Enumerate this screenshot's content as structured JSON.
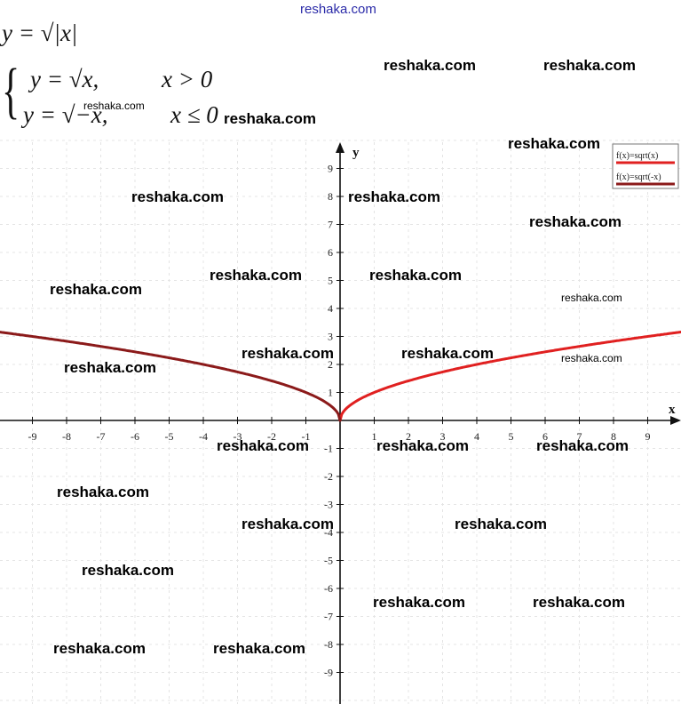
{
  "header": {
    "site": "reshaka.com"
  },
  "formula": {
    "main": "y = √|x|",
    "case1": "y = √x,",
    "case1_cond": "x > 0",
    "case2": "y = √−x,",
    "case2_cond": "x ≤ 0"
  },
  "watermark": "reshaka.com",
  "chart_data": {
    "type": "line",
    "xlabel": "x",
    "ylabel": "y",
    "xlim": [
      -10,
      10
    ],
    "ylim": [
      -10,
      10
    ],
    "x_ticks": [
      -9,
      -8,
      -7,
      -6,
      -5,
      -4,
      -3,
      -2,
      -1,
      1,
      2,
      3,
      4,
      5,
      6,
      7,
      8,
      9
    ],
    "y_ticks": [
      -9,
      -8,
      -7,
      -6,
      -5,
      -4,
      -3,
      -2,
      -1,
      1,
      2,
      3,
      4,
      5,
      6,
      7,
      8,
      9
    ],
    "grid": true,
    "legend_position": "top-right",
    "series": [
      {
        "name": "f(x)=sqrt(x)",
        "color": "#e02020",
        "x": [
          0,
          0.25,
          0.5,
          1,
          2,
          3,
          4,
          5,
          6,
          7,
          8,
          9,
          10
        ],
        "y": [
          0,
          0.5,
          0.71,
          1,
          1.41,
          1.73,
          2,
          2.24,
          2.45,
          2.65,
          2.83,
          3,
          3.16
        ]
      },
      {
        "name": "f(x)=sqrt(-x)",
        "color": "#8b1a1a",
        "x": [
          -10,
          -9,
          -8,
          -7,
          -6,
          -5,
          -4,
          -3,
          -2,
          -1,
          -0.5,
          -0.25,
          0
        ],
        "y": [
          3.16,
          3,
          2.83,
          2.65,
          2.45,
          2.24,
          2,
          1.73,
          1.41,
          1,
          0.71,
          0.5,
          0
        ]
      }
    ]
  }
}
